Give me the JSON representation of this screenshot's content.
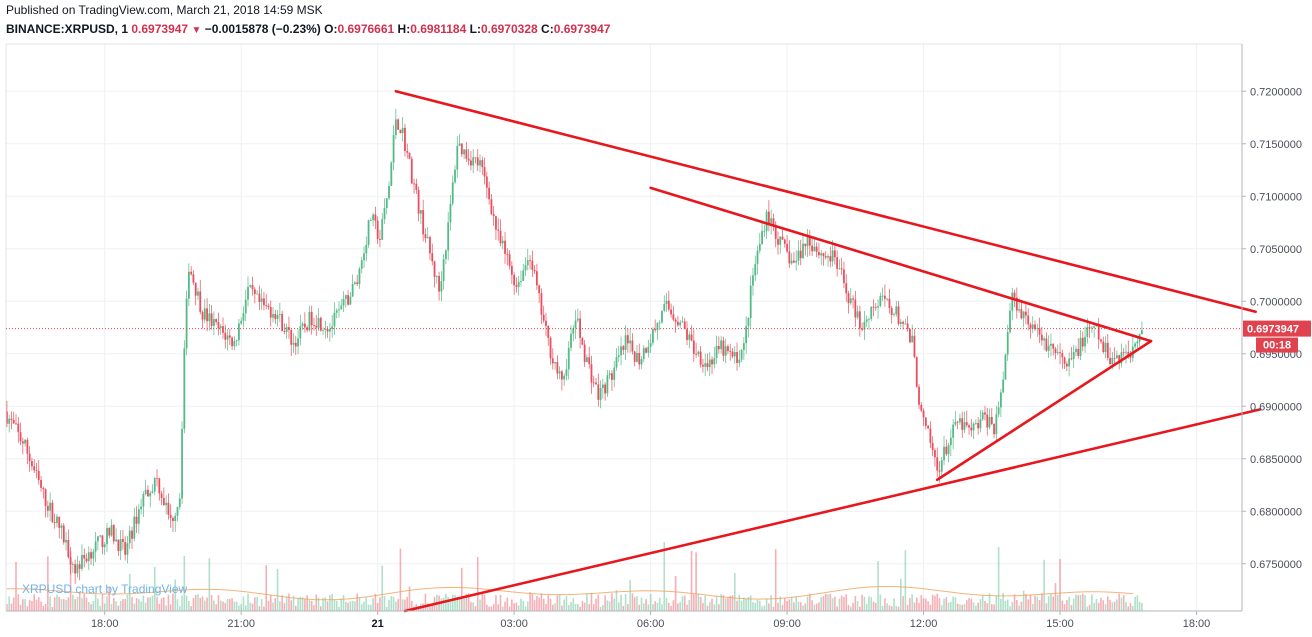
{
  "header": {
    "published": "Published on TradingView.com, March 21, 2018 14:59 MSK",
    "symbol": "BINANCE:XRPUSD, 1",
    "last": "0.6973947",
    "change": "−0.0015878 (−0.23%)",
    "o_label": "O:",
    "o_value": "0.6976661",
    "h_label": "H:",
    "h_value": "0.6981184",
    "l_label": "L:",
    "l_value": "0.6970328",
    "c_label": "C:",
    "c_value": "0.6973947"
  },
  "watermark": "XRPUSD chart by TradingView",
  "colors": {
    "up": "#53b987",
    "down": "#eb4d5c",
    "trendline": "#e8161d",
    "price_line": "#e0424e",
    "grid": "#eef0f3"
  },
  "chart_data": {
    "type": "candlestick",
    "symbol": "BINANCE:XRPUSD",
    "interval": "1",
    "ylim": [
      0.6705,
      0.7245
    ],
    "yticks": [
      {
        "value": 0.72,
        "label": "0.7200000"
      },
      {
        "value": 0.715,
        "label": "0.7150000"
      },
      {
        "value": 0.71,
        "label": "0.7100000"
      },
      {
        "value": 0.705,
        "label": "0.7050000"
      },
      {
        "value": 0.7,
        "label": "0.7000000"
      },
      {
        "value": 0.695,
        "label": "0.6950000"
      },
      {
        "value": 0.69,
        "label": "0.6900000"
      },
      {
        "value": 0.685,
        "label": "0.6850000"
      },
      {
        "value": 0.68,
        "label": "0.6800000"
      },
      {
        "value": 0.675,
        "label": "0.6750000"
      }
    ],
    "xlim_hours": [
      15.83,
      43.0
    ],
    "xticks": [
      {
        "hour": 18,
        "label": "18:00",
        "bold": false
      },
      {
        "hour": 21,
        "label": "21:00",
        "bold": false
      },
      {
        "hour": 24,
        "label": "21",
        "bold": true
      },
      {
        "hour": 27,
        "label": "03:00",
        "bold": false
      },
      {
        "hour": 30,
        "label": "06:00",
        "bold": false
      },
      {
        "hour": 33,
        "label": "09:00",
        "bold": false
      },
      {
        "hour": 36,
        "label": "12:00",
        "bold": false
      },
      {
        "hour": 39,
        "label": "15:00",
        "bold": false
      },
      {
        "hour": 42,
        "label": "18:00",
        "bold": false
      }
    ],
    "price_path": [
      [
        15.85,
        0.6895
      ],
      [
        16.3,
        0.6862
      ],
      [
        16.7,
        0.6815
      ],
      [
        17.1,
        0.678
      ],
      [
        17.4,
        0.6745
      ],
      [
        17.8,
        0.6765
      ],
      [
        18.2,
        0.678
      ],
      [
        18.5,
        0.676
      ],
      [
        18.9,
        0.6815
      ],
      [
        19.2,
        0.683
      ],
      [
        19.5,
        0.679
      ],
      [
        19.7,
        0.6815
      ],
      [
        19.8,
        0.6955
      ],
      [
        19.9,
        0.7035
      ],
      [
        20.2,
        0.699
      ],
      [
        20.5,
        0.6975
      ],
      [
        20.9,
        0.696
      ],
      [
        21.2,
        0.701
      ],
      [
        21.5,
        0.6995
      ],
      [
        21.8,
        0.699
      ],
      [
        22.2,
        0.696
      ],
      [
        22.6,
        0.6985
      ],
      [
        23.0,
        0.6975
      ],
      [
        23.3,
        0.6995
      ],
      [
        23.6,
        0.702
      ],
      [
        23.9,
        0.708
      ],
      [
        24.1,
        0.706
      ],
      [
        24.3,
        0.711
      ],
      [
        24.45,
        0.7175
      ],
      [
        24.6,
        0.716
      ],
      [
        24.8,
        0.712
      ],
      [
        25.0,
        0.708
      ],
      [
        25.2,
        0.7045
      ],
      [
        25.4,
        0.701
      ],
      [
        25.6,
        0.707
      ],
      [
        25.8,
        0.715
      ],
      [
        26.0,
        0.714
      ],
      [
        26.3,
        0.713
      ],
      [
        26.5,
        0.71
      ],
      [
        26.7,
        0.706
      ],
      [
        26.9,
        0.704
      ],
      [
        27.1,
        0.7015
      ],
      [
        27.4,
        0.7045
      ],
      [
        27.6,
        0.7
      ],
      [
        27.8,
        0.696
      ],
      [
        28.1,
        0.692
      ],
      [
        28.4,
        0.6985
      ],
      [
        28.6,
        0.695
      ],
      [
        28.9,
        0.691
      ],
      [
        29.2,
        0.693
      ],
      [
        29.5,
        0.696
      ],
      [
        29.8,
        0.6945
      ],
      [
        30.1,
        0.697
      ],
      [
        30.4,
        0.6995
      ],
      [
        30.7,
        0.698
      ],
      [
        31.0,
        0.6955
      ],
      [
        31.3,
        0.694
      ],
      [
        31.6,
        0.6955
      ],
      [
        31.9,
        0.6945
      ],
      [
        32.1,
        0.6955
      ],
      [
        32.3,
        0.7025
      ],
      [
        32.6,
        0.7085
      ],
      [
        32.9,
        0.7055
      ],
      [
        33.2,
        0.7035
      ],
      [
        33.5,
        0.706
      ],
      [
        33.8,
        0.7045
      ],
      [
        34.1,
        0.704
      ],
      [
        34.4,
        0.7005
      ],
      [
        34.7,
        0.6975
      ],
      [
        34.9,
        0.6995
      ],
      [
        35.2,
        0.7
      ],
      [
        35.5,
        0.6985
      ],
      [
        35.8,
        0.696
      ],
      [
        36.0,
        0.689
      ],
      [
        36.2,
        0.6865
      ],
      [
        36.35,
        0.684
      ],
      [
        36.5,
        0.6855
      ],
      [
        36.8,
        0.6885
      ],
      [
        37.1,
        0.6875
      ],
      [
        37.4,
        0.689
      ],
      [
        37.6,
        0.688
      ],
      [
        37.8,
        0.6925
      ],
      [
        37.9,
        0.6975
      ],
      [
        38.0,
        0.7005
      ],
      [
        38.3,
        0.6985
      ],
      [
        38.6,
        0.6965
      ],
      [
        38.9,
        0.6955
      ],
      [
        39.2,
        0.6935
      ],
      [
        39.5,
        0.696
      ],
      [
        39.8,
        0.6975
      ],
      [
        40.0,
        0.6955
      ],
      [
        40.2,
        0.6945
      ],
      [
        40.4,
        0.695
      ],
      [
        40.6,
        0.695
      ],
      [
        40.7,
        0.6965
      ],
      [
        40.83,
        0.6974
      ]
    ],
    "last_price": {
      "value": 0.6973947,
      "label": "0.6973947",
      "countdown": "00:18"
    },
    "trendlines": [
      {
        "from": [
          24.4,
          0.72
        ],
        "to": [
          43.3,
          0.699
        ]
      },
      {
        "from": [
          30.0,
          0.7108
        ],
        "to": [
          41.0,
          0.6962
        ]
      },
      {
        "from": [
          36.3,
          0.683
        ],
        "to": [
          41.0,
          0.6962
        ]
      },
      {
        "from": [
          24.6,
          0.6705
        ],
        "to": [
          43.4,
          0.6897
        ]
      }
    ]
  }
}
